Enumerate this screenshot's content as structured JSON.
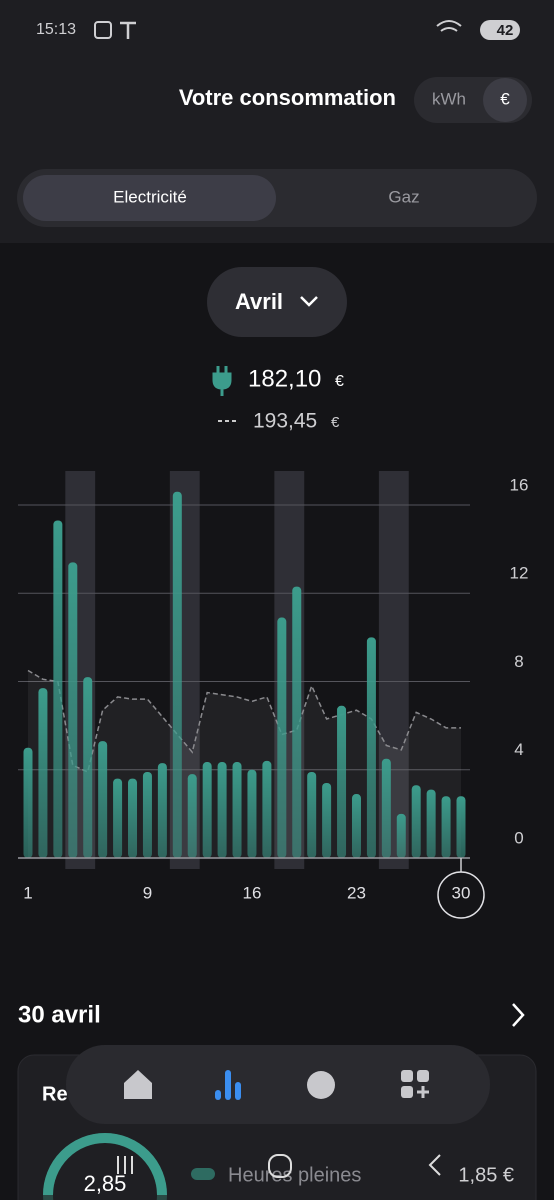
{
  "status_bar": {
    "time": "15:13",
    "battery": "42"
  },
  "header": {
    "title": "Votre consommation",
    "unit_toggle": [
      "kWh",
      "€"
    ]
  },
  "tabs": [
    "Electricité",
    "Gaz"
  ],
  "month_selector": "Avril",
  "totals": {
    "current": {
      "value": "182,10",
      "unit": "€"
    },
    "reference": {
      "value": "193,45",
      "unit": "€"
    }
  },
  "chart_data": {
    "type": "bar",
    "x": [
      1,
      2,
      3,
      4,
      5,
      6,
      7,
      8,
      9,
      10,
      11,
      12,
      13,
      14,
      15,
      16,
      17,
      18,
      19,
      20,
      21,
      22,
      23,
      24,
      25,
      26,
      27,
      28,
      29,
      30
    ],
    "xlim": [
      1,
      30
    ],
    "xticks": [
      1,
      9,
      16,
      23,
      30
    ],
    "selected_x": 30,
    "highlight_x": [
      4,
      11,
      18,
      25
    ],
    "ylim": [
      0,
      16
    ],
    "yticks": [
      0,
      4,
      8,
      12,
      16
    ],
    "grid": true,
    "series": [
      {
        "type": "bar",
        "color": "#3c9c8c",
        "values": [
          5.0,
          7.7,
          15.3,
          13.4,
          8.2,
          5.3,
          3.6,
          3.6,
          3.9,
          4.3,
          16.6,
          3.8,
          4.35,
          4.35,
          4.35,
          4.0,
          4.4,
          10.9,
          12.3,
          3.9,
          3.4,
          6.9,
          2.9,
          10.0,
          4.5,
          2.0,
          3.3,
          3.1,
          2.8,
          2.8
        ]
      },
      {
        "type": "line",
        "color": "#8a8a8e",
        "values": [
          8.5,
          8.1,
          8.0,
          4.2,
          3.9,
          6.7,
          7.3,
          7.2,
          7.2,
          6.4,
          5.6,
          4.8,
          7.5,
          7.4,
          7.3,
          7.1,
          7.3,
          5.6,
          5.8,
          7.8,
          6.3,
          6.5,
          6.7,
          6.3,
          5.1,
          4.9,
          6.6,
          6.3,
          5.9,
          5.9
        ]
      }
    ]
  },
  "day_detail": {
    "title": "30 avril",
    "card_title": "Re",
    "gauge_value": "2,85",
    "legend": "Heures pleines",
    "amount": "1,85 €"
  }
}
